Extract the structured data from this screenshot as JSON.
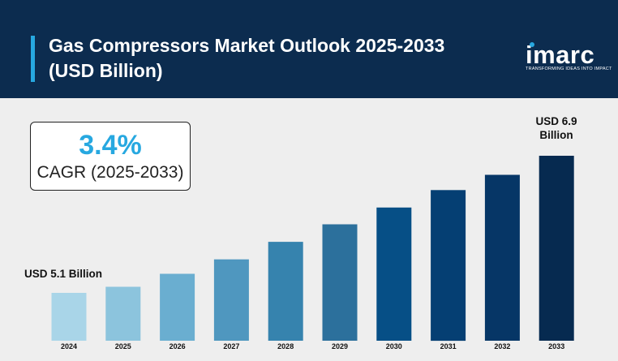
{
  "header": {
    "title_line1": "Gas Compressors Market Outlook 2025-2033",
    "title_line2": "(USD Billion)"
  },
  "logo": {
    "word": "imarc",
    "tagline": "TRANSFORMING IDEAS INTO IMPACT"
  },
  "cagr": {
    "value": "3.4%",
    "label": "CAGR (2025-2033)"
  },
  "annotations": {
    "start_label": "USD 5.1 Billion",
    "end_label_line1": "USD 6.9",
    "end_label_line2": "Billion"
  },
  "chart_data": {
    "type": "bar",
    "title": "Gas Compressors Market Outlook 2025-2033",
    "xlabel": "",
    "ylabel": "",
    "categories": [
      "2024",
      "2025",
      "2026",
      "2027",
      "2028",
      "2029",
      "2030",
      "2031",
      "2032",
      "2033"
    ],
    "values": [
      5.1,
      5.18,
      5.35,
      5.54,
      5.77,
      6.0,
      6.22,
      6.45,
      6.65,
      6.9
    ],
    "colors": [
      "#a9d5e8",
      "#8cc4dd",
      "#6aaed0",
      "#4f97bf",
      "#3683ae",
      "#2c709c",
      "#064f86",
      "#053f73",
      "#063666",
      "#062a50"
    ],
    "grid": false
  }
}
